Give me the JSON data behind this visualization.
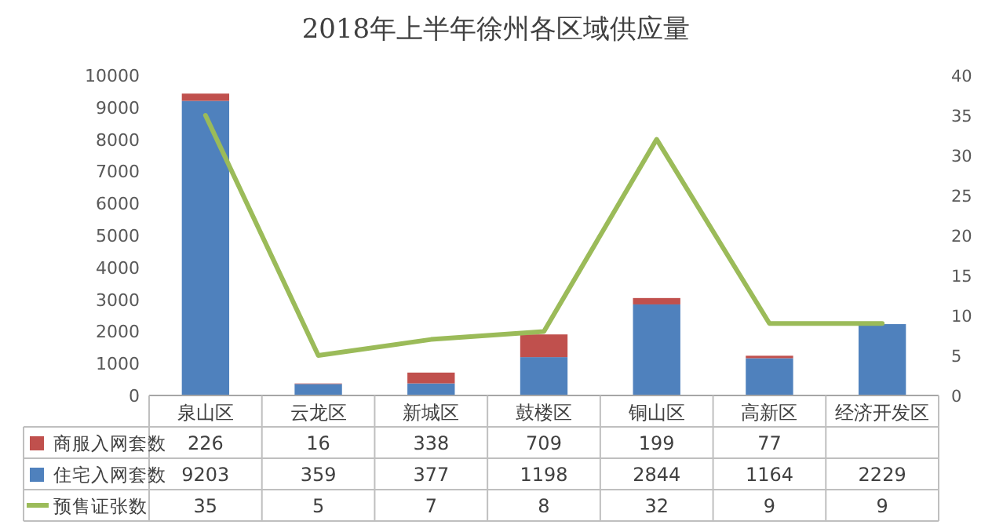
{
  "chart_data": {
    "type": "bar",
    "title": "2018年上半年徐州各区域供应量",
    "categories": [
      "泉山区",
      "云龙区",
      "新城区",
      "鼓楼区",
      "铜山区",
      "高新区",
      "经济开发区"
    ],
    "stacked": true,
    "series": [
      {
        "name": "住宅入网套数",
        "color": "#4f81bd",
        "values": [
          9203,
          359,
          377,
          1198,
          2844,
          1164,
          2229
        ]
      },
      {
        "name": "商服入网套数",
        "color": "#c0504d",
        "values": [
          226,
          16,
          338,
          709,
          199,
          77,
          null
        ]
      },
      {
        "name": "预售证张数",
        "type": "line",
        "axis": "y2",
        "color": "#9bbb59",
        "values": [
          35,
          5,
          7,
          8,
          32,
          9,
          9
        ]
      }
    ],
    "ylim": [
      0,
      10000
    ],
    "yticks": [
      0,
      1000,
      2000,
      3000,
      4000,
      5000,
      6000,
      7000,
      8000,
      9000,
      10000
    ],
    "y2lim": [
      0,
      40
    ],
    "y2ticks": [
      0,
      5,
      10,
      15,
      20,
      25,
      30,
      35,
      40
    ],
    "data_labels": true,
    "legend": "bottom"
  }
}
